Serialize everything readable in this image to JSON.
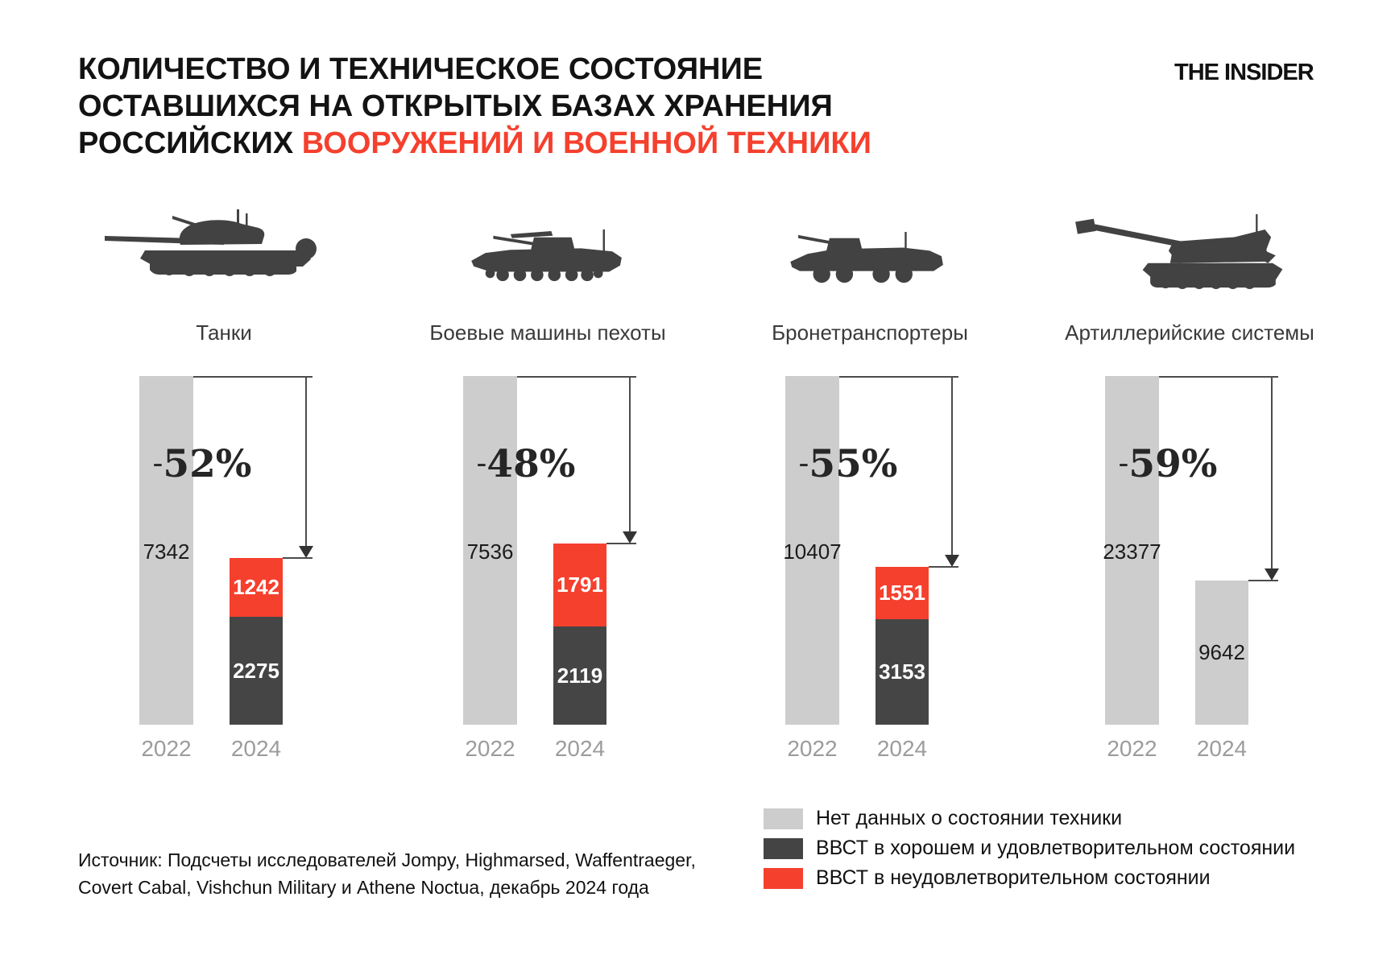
{
  "header": {
    "title_line1": "КОЛИЧЕСТВО И ТЕХНИЧЕСКОЕ СОСТОЯНИЕ",
    "title_line2": "ОСТАВШИХСЯ НА ОТКРЫТЫХ БАЗАХ ХРАНЕНИЯ",
    "title_line3_black": "РОССИЙСКИХ ",
    "title_line3_red": "ВООРУЖЕНИЙ И ВОЕННОЙ ТЕХНИКИ",
    "logo": "THE INSIDER"
  },
  "colors": {
    "accent_red": "#f5402e",
    "dark_gray": "#454545",
    "light_gray": "#cdcdcd",
    "silhouette": "#424242",
    "year_label": "#9c9c9c"
  },
  "chart_data": {
    "type": "bar",
    "subtype": "grouped-stacked-comparison",
    "years": [
      "2022",
      "2024"
    ],
    "ylabel": "",
    "grid": false,
    "charts": [
      {
        "category": "Танки",
        "icon": "tank-icon",
        "y2022": 7342,
        "pct_sign": "-",
        "pct_value": "52%",
        "pct_change": "-52%",
        "y2024": {
          "bad": 1242,
          "good": 2275
        }
      },
      {
        "category": "Боевые машины пехоты",
        "icon": "ifv-icon",
        "y2022": 7536,
        "pct_sign": "-",
        "pct_value": "48%",
        "pct_change": "-48%",
        "y2024": {
          "bad": 1791,
          "good": 2119
        }
      },
      {
        "category": "Бронетранспортеры",
        "icon": "apc-icon",
        "y2022": 10407,
        "pct_sign": "-",
        "pct_value": "55%",
        "pct_change": "-55%",
        "y2024": {
          "bad": 1551,
          "good": 3153
        }
      },
      {
        "category": "Артиллерийские системы",
        "icon": "artillery-icon",
        "y2022": 23377,
        "pct_sign": "-",
        "pct_value": "59%",
        "pct_change": "-59%",
        "y2024": {
          "unknown": 9642
        }
      }
    ],
    "legend": [
      {
        "swatch": "light_gray",
        "label": "Нет данных о состоянии техники"
      },
      {
        "swatch": "dark_gray",
        "label": "ВВСТ в хорошем и удовлетворительном состоянии"
      },
      {
        "swatch": "accent_red",
        "label": "ВВСТ в неудовлетворительном состоянии"
      }
    ]
  },
  "footer": {
    "source_line1": "Источник: Подсчеты исследователей Jompy, Highmarsed, Waffentraeger,",
    "source_line2": "Covert Cabal, Vishchun Military и Athene Noctua, декабрь 2024 года"
  }
}
